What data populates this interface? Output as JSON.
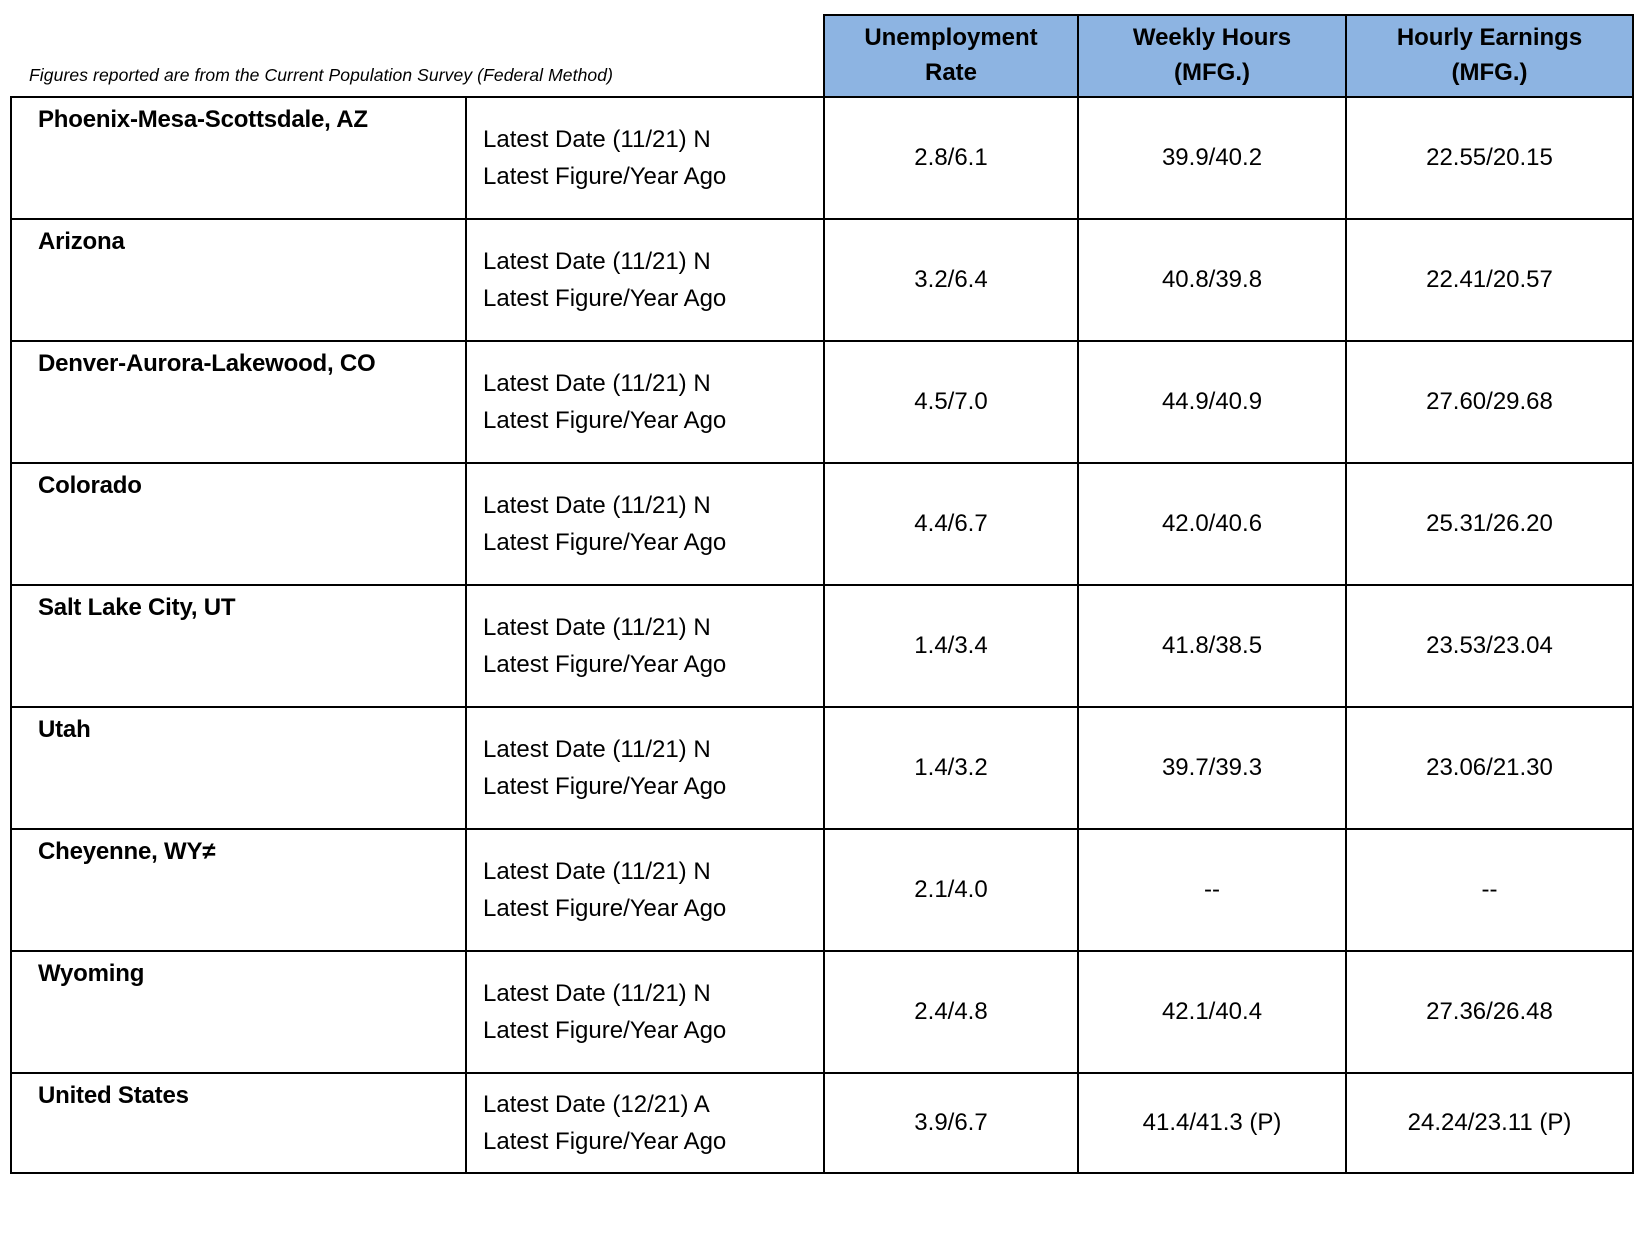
{
  "page": {
    "caption": "Figures reported are from the Current Population Survey (Federal Method)"
  },
  "table": {
    "columns": [
      "Unemployment Rate",
      "Weekly Hours (MFG.)",
      "Hourly Earnings (MFG.)"
    ],
    "rows": [
      {
        "region": "Phoenix-Mesa-Scottsdale, AZ",
        "label_line1": "Latest Date (11/21) N",
        "label_line2": "Latest Figure/Year Ago",
        "unemployment_rate": "2.8/6.1",
        "weekly_hours": "39.9/40.2",
        "hourly_earnings": "22.55/20.15"
      },
      {
        "region": "Arizona",
        "label_line1": "Latest Date (11/21) N",
        "label_line2": "Latest Figure/Year Ago",
        "unemployment_rate": "3.2/6.4",
        "weekly_hours": "40.8/39.8",
        "hourly_earnings": "22.41/20.57"
      },
      {
        "region": "Denver-Aurora-Lakewood, CO",
        "label_line1": "Latest Date (11/21) N",
        "label_line2": "Latest Figure/Year Ago",
        "unemployment_rate": "4.5/7.0",
        "weekly_hours": "44.9/40.9",
        "hourly_earnings": "27.60/29.68"
      },
      {
        "region": "Colorado",
        "label_line1": "Latest Date (11/21) N",
        "label_line2": "Latest Figure/Year Ago",
        "unemployment_rate": "4.4/6.7",
        "weekly_hours": "42.0/40.6",
        "hourly_earnings": "25.31/26.20"
      },
      {
        "region": "Salt Lake City, UT",
        "label_line1": "Latest Date (11/21) N",
        "label_line2": "Latest Figure/Year Ago",
        "unemployment_rate": "1.4/3.4",
        "weekly_hours": "41.8/38.5",
        "hourly_earnings": "23.53/23.04"
      },
      {
        "region": "Utah",
        "label_line1": "Latest Date (11/21) N",
        "label_line2": "Latest Figure/Year Ago",
        "unemployment_rate": "1.4/3.2",
        "weekly_hours": "39.7/39.3",
        "hourly_earnings": "23.06/21.30"
      },
      {
        "region": "Cheyenne, WY≠",
        "label_line1": "Latest Date (11/21) N",
        "label_line2": "Latest Figure/Year Ago",
        "unemployment_rate": "2.1/4.0",
        "weekly_hours": "--",
        "hourly_earnings": "--"
      },
      {
        "region": "Wyoming",
        "label_line1": "Latest Date (11/21) N",
        "label_line2": "Latest Figure/Year Ago",
        "unemployment_rate": "2.4/4.8",
        "weekly_hours": "42.1/40.4",
        "hourly_earnings": "27.36/26.48"
      },
      {
        "region": "United States",
        "label_line1": "Latest Date (12/21) A",
        "label_line2": "Latest Figure/Year Ago",
        "unemployment_rate": "3.9/6.7",
        "weekly_hours": "41.4/41.3 (P)",
        "hourly_earnings": "24.24/23.11 (P)"
      }
    ]
  },
  "colors": {
    "header_bg": "#8DB4E2",
    "border": "#000000"
  }
}
